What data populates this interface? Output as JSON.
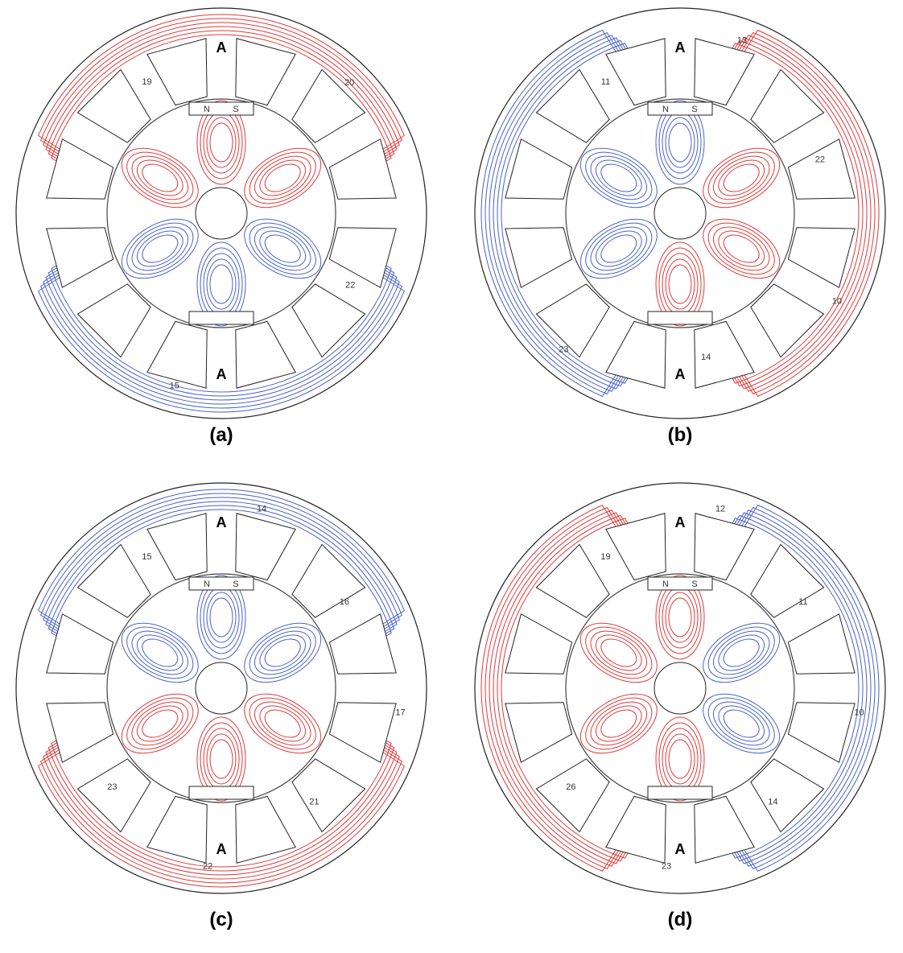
{
  "panels": [
    {
      "caption": "(a)",
      "poles": [
        "A",
        "A"
      ],
      "magnet": [
        "N",
        "S"
      ],
      "contour_labels": [
        "19",
        "20",
        "22",
        "15"
      ]
    },
    {
      "caption": "(b)",
      "poles": [
        "A",
        "A"
      ],
      "magnet": [
        "N",
        "S"
      ],
      "contour_labels": [
        "11",
        "13",
        "22",
        "10",
        "14",
        "23"
      ]
    },
    {
      "caption": "(c)",
      "poles": [
        "A",
        "A"
      ],
      "magnet": [
        "N",
        "S"
      ],
      "contour_labels": [
        "15",
        "14",
        "16",
        "17",
        "21",
        "22",
        "23"
      ]
    },
    {
      "caption": "(d)",
      "poles": [
        "A",
        "A"
      ],
      "magnet": [
        "N",
        "S"
      ],
      "contour_labels": [
        "19",
        "12",
        "11",
        "10",
        "14",
        "23",
        "26"
      ]
    }
  ]
}
